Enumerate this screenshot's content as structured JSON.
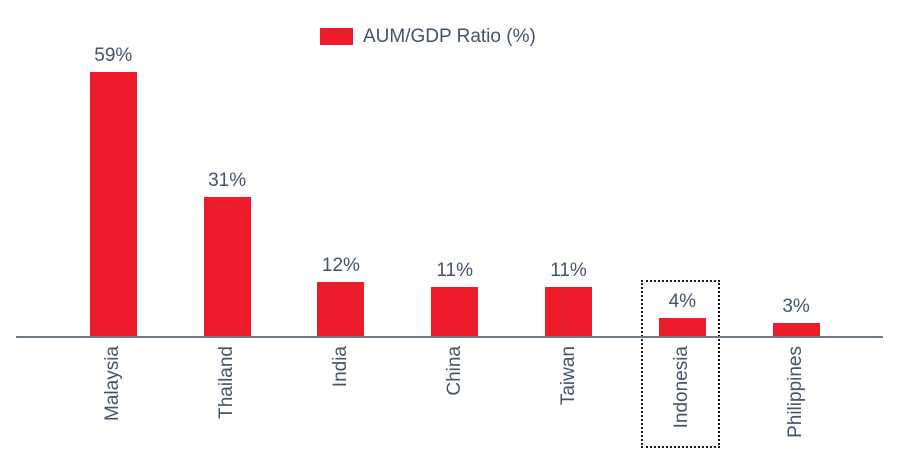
{
  "chart_data": {
    "type": "bar",
    "title": "",
    "legend": "AUM/GDP Ratio (%)",
    "legend_position": "top-center",
    "categories": [
      "Malaysia",
      "Thailand",
      "India",
      "China",
      "Taiwan",
      "Indonesia",
      "Philippines"
    ],
    "values": [
      59,
      31,
      12,
      11,
      11,
      4,
      3
    ],
    "data_labels": [
      "59%",
      "31%",
      "12%",
      "11%",
      "11%",
      "4%",
      "3%"
    ],
    "xlabel": "",
    "ylabel": "",
    "ylim": [
      0,
      65
    ],
    "grid": false,
    "y_axis_visible": false,
    "x_labels_rotated_degrees": 90,
    "colors": {
      "bar": "#ED1C2B",
      "text": "#44546A",
      "axis_line": "#6E7B85",
      "highlight_border": "#1A1A1A",
      "background": "#FFFFFF"
    },
    "highlight": {
      "category": "Indonesia",
      "style": "dotted-box"
    }
  }
}
